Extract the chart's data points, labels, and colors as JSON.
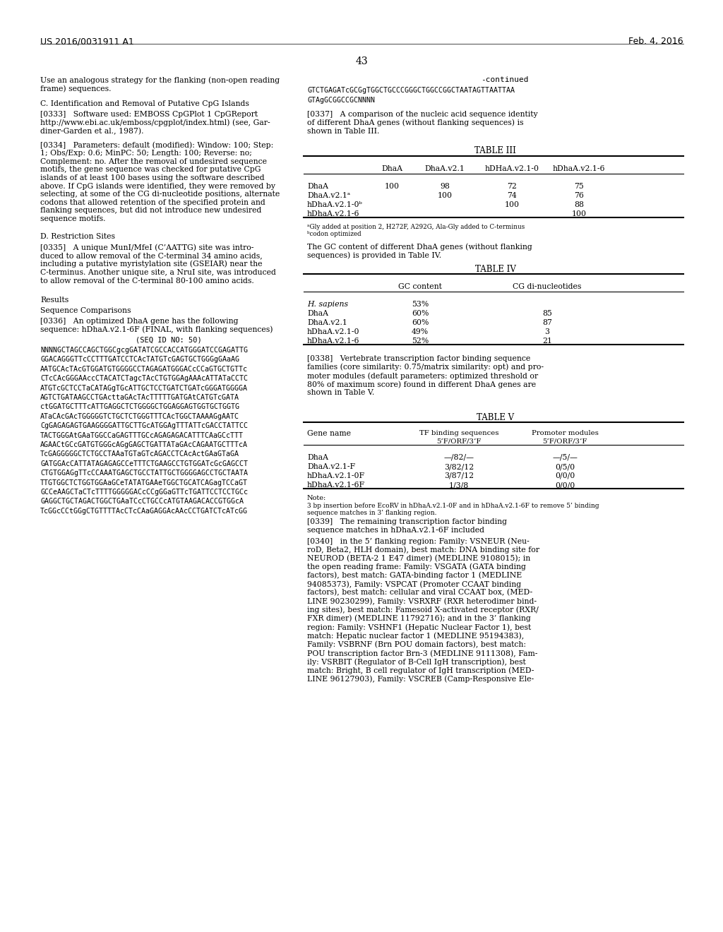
{
  "bg_color": "#ffffff",
  "header_left": "US 2016/0031911 A1",
  "header_right": "Feb. 4, 2016",
  "page_number": "43",
  "continued_label": "-continued",
  "seq_line1": "GTCTGAGATcGCGgTGGCTGCCCGGGCTGGCCGGCTAATAGTTAATTAA",
  "seq_line2": "GTAgGCGGCCGCNNNN",
  "seq_block": [
    "NNNNGCTAGCCAGCTGGCgcgGATATCGCCACCATGGGATCCGAGATTG",
    "GGACAGGGTTcCCTTTGATCCTCAcTATGTcGAGTGCTGGGgGAaAG",
    "AATGCAcTAcGTGGATGTGGGGCCTAGAGATGGGACcCCaGTGCTGTTc",
    "CTcCAcGGGAAccCTACATCTagcTAcCTGTGGAgAAAcATTATaCCTC",
    "ATGTcGCTCCTaCATAGgTGcATTGCTCCTGATCTGATcGGGATGGGGA",
    "AGTCTGATAAGCCTGActtaGAcTAcTTTTTGATGAtCATGTcGATA",
    "ctGGATGCTTTcATTGAGGCTCTGGGGCTGGAGGAGTGGTGCTGGTG",
    "ATaCAcGAcTGGGGGTCTGCTCTGGGTTTCAcTGGCTAAAAGgAATC",
    "CgGAGAGAGTGAAGGGGATTGCTTGcATGGAgTTTATTcGACCTATTCC",
    "TACTGGGAtGAaTGGCCaGAGTTTGCcAGAGAGACATTTCAaGCcTTT",
    "AGAACtGCcGATGTGGGcAGgGAGCTGATTATaGAcCAGAATGCTTTcA",
    "TcGAGGGGGCTCTGCCTAAaTGTaGTcAGACCTCAcActGAaGTaGA",
    "GATGGAcCATTATAGAGAGCCeTTTCTGAAGCCTGTGGATcGcGAGCCT",
    "CTGTGGAGgTTcCCAAATGAGCTGCCTATTGCTGGGGAGCCTGCTAATA",
    "TTGTGGCTCTGGTGGAaGCeTATATGAAeTGGCTGCATCAGagTCCaGT",
    "GCCeAAGCTaCTcTTTTGGGGGACcCCgGGaGTTcTGATTCCTCCTGCc",
    "GAGGCTGCTAGACTGGCTGAaTCcCTGCCcATGTAAGACACCGTGGcA",
    "TcGGcCCtGGgCTGTTTTAcCTcCAaGAGGAcAAcCCTGATCTcATcGG"
  ],
  "right_col_para337": "[0337]   A comparison of the nucleic acid sequence identity\nof different DhaA genes (without flanking sequences) is\nshown in Table III.",
  "right_para_gc": "The GC content of different DhaA genes (without flanking\nsequences) is provided in Table IV.",
  "right_para338": "[0338]   Vertebrate transcription factor binding sequence\nfamilies (core similarity: 0.75/matrix similarity: opt) and pro-\nmoter modules (default parameters: optimized threshold or\n80% of maximum score) found in different DhaA genes are\nshown in Table V.",
  "table5_note_text": "3 bp insertion before EcoRV in hDhaA.v2.1-0F and in hDhaA.v2.1-6F to remove 5’ binding\nsequence matches in 3’ flanking region.",
  "right_para339": "[0339]   The remaining transcription factor binding\nsequence matches in hDhaA.v2.1-6F included",
  "right_para340": "[0340]   in the 5’ flanking region: Family: VSNEUR (Neu-\nroD, Beta2, HLH domain), best match: DNA binding site for\nNEUROD (BETA-2 1 E47 dimer) (MEDLINE 9108015); in\nthe open reading frame: Family: VSGATA (GATA binding\nfactors), best match: GATA-binding factor 1 (MEDLINE\n94085373), Family: VSPCAT (Promoter CCAAT binding\nfactors), best match: cellular and viral CCAAT box, (MED-\nLINE 90230299), Family: VSRXRF (RXR heterodimer bind-\ning sites), best match: Famesoid X-activated receptor (RXR/\nFXR dimer) (MEDLINE 11792716); and in the 3’ flanking\nregion: Family: VSHNF1 (Hepatic Nuclear Factor 1), best\nmatch: Hepatic nuclear factor 1 (MEDLINE 95194383),\nFamily: VSBRNF (Brn POU domain factors), best match:\nPOU transcription factor Brn-3 (MEDLINE 9111308), Fam-\nily: VSRBIT (Regulator of B-Cell IgH transcription), best\nmatch: Bright, B cell regulator of IgH transcription (MED-\nLINE 96127903), Family: VSCREB (Camp-Responsive Ele-"
}
